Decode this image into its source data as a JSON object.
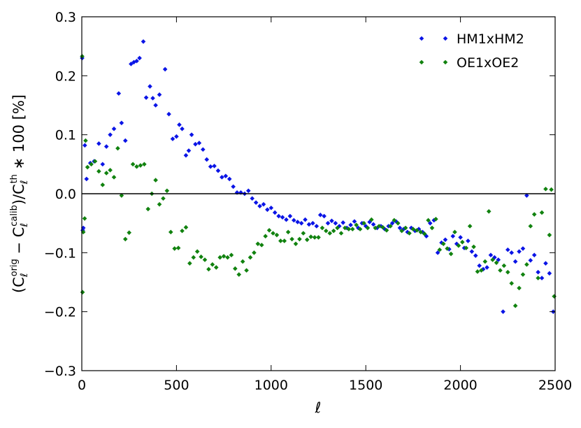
{
  "chart_data": {
    "type": "scatter",
    "xlabel": "ℓ",
    "ylabel": {
      "prefix": "(C",
      "sub1": "ℓ",
      "sup1": "orig",
      "mid": " − C",
      "sub2": "ℓ",
      "sup2": "calib",
      "mid2": ")/C",
      "sub3": "ℓ",
      "sup3": "th",
      "suffix": " ∗ 100 [%]"
    },
    "xlim": [
      0,
      2500
    ],
    "ylim": [
      -0.3,
      0.3
    ],
    "xticks": [
      0,
      500,
      1000,
      1500,
      2000,
      2500
    ],
    "xtick_labels": [
      "0",
      "500",
      "1000",
      "1500",
      "2000",
      "2500"
    ],
    "yticks": [
      -0.3,
      -0.2,
      -0.1,
      0.0,
      0.1,
      0.2,
      0.3
    ],
    "ytick_labels": [
      "−0.3",
      "−0.2",
      "−0.1",
      "0.0",
      "0.1",
      "0.2",
      "0.3"
    ],
    "hline": 0.0,
    "grid": false,
    "legend_position": "top-right",
    "marker": "diamond",
    "series": [
      {
        "name": "HM1xHM2",
        "color": "#0a14e6",
        "points": [
          [
            2,
            0.23
          ],
          [
            5,
            -0.062
          ],
          [
            8,
            -0.058
          ],
          [
            16,
            0.082
          ],
          [
            25,
            0.025
          ],
          [
            45,
            0.052
          ],
          [
            65,
            0.055
          ],
          [
            90,
            0.085
          ],
          [
            110,
            0.05
          ],
          [
            130,
            0.08
          ],
          [
            150,
            0.1
          ],
          [
            170,
            0.11
          ],
          [
            195,
            0.17
          ],
          [
            210,
            0.12
          ],
          [
            230,
            0.09
          ],
          [
            260,
            0.22
          ],
          [
            275,
            0.223
          ],
          [
            290,
            0.225
          ],
          [
            305,
            0.23
          ],
          [
            325,
            0.258
          ],
          [
            340,
            0.163
          ],
          [
            360,
            0.182
          ],
          [
            375,
            0.162
          ],
          [
            390,
            0.15
          ],
          [
            410,
            0.168
          ],
          [
            440,
            0.211
          ],
          [
            460,
            0.135
          ],
          [
            480,
            0.093
          ],
          [
            500,
            0.097
          ],
          [
            515,
            0.117
          ],
          [
            530,
            0.11
          ],
          [
            550,
            0.065
          ],
          [
            565,
            0.073
          ],
          [
            580,
            0.1
          ],
          [
            600,
            0.084
          ],
          [
            620,
            0.086
          ],
          [
            640,
            0.075
          ],
          [
            660,
            0.058
          ],
          [
            680,
            0.046
          ],
          [
            700,
            0.047
          ],
          [
            720,
            0.039
          ],
          [
            740,
            0.028
          ],
          [
            760,
            0.03
          ],
          [
            780,
            0.025
          ],
          [
            800,
            0.012
          ],
          [
            820,
            0.002
          ],
          [
            840,
            0.002
          ],
          [
            860,
            0.0
          ],
          [
            880,
            0.005
          ],
          [
            900,
            -0.008
          ],
          [
            920,
            -0.015
          ],
          [
            940,
            -0.021
          ],
          [
            960,
            -0.018
          ],
          [
            980,
            -0.027
          ],
          [
            1000,
            -0.024
          ],
          [
            1020,
            -0.032
          ],
          [
            1040,
            -0.038
          ],
          [
            1060,
            -0.04
          ],
          [
            1080,
            -0.044
          ],
          [
            1100,
            -0.038
          ],
          [
            1120,
            -0.045
          ],
          [
            1140,
            -0.048
          ],
          [
            1160,
            -0.05
          ],
          [
            1180,
            -0.044
          ],
          [
            1200,
            -0.052
          ],
          [
            1220,
            -0.05
          ],
          [
            1240,
            -0.055
          ],
          [
            1260,
            -0.036
          ],
          [
            1280,
            -0.038
          ],
          [
            1300,
            -0.05
          ],
          [
            1320,
            -0.046
          ],
          [
            1340,
            -0.05
          ],
          [
            1360,
            -0.055
          ],
          [
            1380,
            -0.049
          ],
          [
            1400,
            -0.058
          ],
          [
            1420,
            -0.053
          ],
          [
            1440,
            -0.047
          ],
          [
            1460,
            -0.058
          ],
          [
            1480,
            -0.05
          ],
          [
            1500,
            -0.055
          ],
          [
            1520,
            -0.048
          ],
          [
            1540,
            -0.052
          ],
          [
            1560,
            -0.058
          ],
          [
            1580,
            -0.055
          ],
          [
            1600,
            -0.06
          ],
          [
            1620,
            -0.055
          ],
          [
            1640,
            -0.05
          ],
          [
            1660,
            -0.047
          ],
          [
            1680,
            -0.058
          ],
          [
            1700,
            -0.06
          ],
          [
            1720,
            -0.065
          ],
          [
            1740,
            -0.058
          ],
          [
            1760,
            -0.063
          ],
          [
            1780,
            -0.06
          ],
          [
            1800,
            -0.065
          ],
          [
            1820,
            -0.072
          ],
          [
            1840,
            -0.05
          ],
          [
            1860,
            -0.045
          ],
          [
            1880,
            -0.1
          ],
          [
            1900,
            -0.083
          ],
          [
            1920,
            -0.078
          ],
          [
            1940,
            -0.094
          ],
          [
            1960,
            -0.072
          ],
          [
            1980,
            -0.085
          ],
          [
            2000,
            -0.074
          ],
          [
            2020,
            -0.092
          ],
          [
            2040,
            -0.08
          ],
          [
            2060,
            -0.098
          ],
          [
            2080,
            -0.105
          ],
          [
            2100,
            -0.122
          ],
          [
            2120,
            -0.128
          ],
          [
            2140,
            -0.125
          ],
          [
            2160,
            -0.104
          ],
          [
            2180,
            -0.108
          ],
          [
            2200,
            -0.112
          ],
          [
            2225,
            -0.2
          ],
          [
            2250,
            -0.095
          ],
          [
            2270,
            -0.1
          ],
          [
            2290,
            -0.115
          ],
          [
            2310,
            -0.098
          ],
          [
            2330,
            -0.093
          ],
          [
            2350,
            -0.003
          ],
          [
            2370,
            -0.113
          ],
          [
            2390,
            -0.104
          ],
          [
            2410,
            -0.133
          ],
          [
            2430,
            -0.143
          ],
          [
            2450,
            -0.118
          ],
          [
            2470,
            -0.135
          ],
          [
            2490,
            -0.2
          ]
        ]
      },
      {
        "name": "OE1xOE2",
        "color": "#11820f",
        "points": [
          [
            2,
            0.233
          ],
          [
            4,
            -0.167
          ],
          [
            8,
            -0.065
          ],
          [
            15,
            -0.042
          ],
          [
            20,
            0.09
          ],
          [
            30,
            0.045
          ],
          [
            50,
            0.05
          ],
          [
            70,
            0.055
          ],
          [
            90,
            0.038
          ],
          [
            110,
            0.015
          ],
          [
            130,
            0.035
          ],
          [
            150,
            0.04
          ],
          [
            170,
            0.028
          ],
          [
            190,
            0.077
          ],
          [
            210,
            -0.003
          ],
          [
            230,
            -0.077
          ],
          [
            250,
            -0.066
          ],
          [
            270,
            0.05
          ],
          [
            290,
            0.046
          ],
          [
            310,
            0.048
          ],
          [
            330,
            0.05
          ],
          [
            350,
            -0.026
          ],
          [
            370,
            0.0
          ],
          [
            390,
            0.023
          ],
          [
            410,
            -0.018
          ],
          [
            430,
            -0.008
          ],
          [
            450,
            0.005
          ],
          [
            470,
            -0.065
          ],
          [
            490,
            -0.093
          ],
          [
            510,
            -0.092
          ],
          [
            530,
            -0.063
          ],
          [
            550,
            -0.057
          ],
          [
            570,
            -0.118
          ],
          [
            590,
            -0.108
          ],
          [
            610,
            -0.098
          ],
          [
            630,
            -0.107
          ],
          [
            650,
            -0.112
          ],
          [
            670,
            -0.128
          ],
          [
            690,
            -0.12
          ],
          [
            710,
            -0.125
          ],
          [
            730,
            -0.108
          ],
          [
            750,
            -0.106
          ],
          [
            770,
            -0.108
          ],
          [
            790,
            -0.104
          ],
          [
            810,
            -0.127
          ],
          [
            830,
            -0.137
          ],
          [
            850,
            -0.115
          ],
          [
            870,
            -0.13
          ],
          [
            890,
            -0.108
          ],
          [
            910,
            -0.1
          ],
          [
            930,
            -0.085
          ],
          [
            950,
            -0.087
          ],
          [
            970,
            -0.072
          ],
          [
            990,
            -0.062
          ],
          [
            1010,
            -0.067
          ],
          [
            1030,
            -0.07
          ],
          [
            1050,
            -0.08
          ],
          [
            1070,
            -0.08
          ],
          [
            1090,
            -0.065
          ],
          [
            1110,
            -0.077
          ],
          [
            1130,
            -0.085
          ],
          [
            1150,
            -0.077
          ],
          [
            1170,
            -0.067
          ],
          [
            1190,
            -0.078
          ],
          [
            1210,
            -0.073
          ],
          [
            1230,
            -0.074
          ],
          [
            1250,
            -0.074
          ],
          [
            1270,
            -0.058
          ],
          [
            1290,
            -0.063
          ],
          [
            1310,
            -0.067
          ],
          [
            1330,
            -0.063
          ],
          [
            1350,
            -0.058
          ],
          [
            1370,
            -0.067
          ],
          [
            1390,
            -0.058
          ],
          [
            1410,
            -0.06
          ],
          [
            1430,
            -0.06
          ],
          [
            1450,
            -0.053
          ],
          [
            1470,
            -0.06
          ],
          [
            1490,
            -0.05
          ],
          [
            1510,
            -0.058
          ],
          [
            1530,
            -0.044
          ],
          [
            1550,
            -0.058
          ],
          [
            1570,
            -0.055
          ],
          [
            1590,
            -0.057
          ],
          [
            1610,
            -0.062
          ],
          [
            1630,
            -0.055
          ],
          [
            1650,
            -0.045
          ],
          [
            1670,
            -0.05
          ],
          [
            1690,
            -0.063
          ],
          [
            1710,
            -0.058
          ],
          [
            1730,
            -0.067
          ],
          [
            1750,
            -0.06
          ],
          [
            1770,
            -0.062
          ],
          [
            1790,
            -0.065
          ],
          [
            1810,
            -0.068
          ],
          [
            1830,
            -0.045
          ],
          [
            1850,
            -0.058
          ],
          [
            1870,
            -0.043
          ],
          [
            1890,
            -0.095
          ],
          [
            1910,
            -0.085
          ],
          [
            1930,
            -0.093
          ],
          [
            1950,
            -0.102
          ],
          [
            1970,
            -0.065
          ],
          [
            1990,
            -0.088
          ],
          [
            2010,
            -0.082
          ],
          [
            2030,
            -0.092
          ],
          [
            2050,
            -0.055
          ],
          [
            2070,
            -0.09
          ],
          [
            2090,
            -0.132
          ],
          [
            2110,
            -0.13
          ],
          [
            2130,
            -0.115
          ],
          [
            2150,
            -0.03
          ],
          [
            2170,
            -0.112
          ],
          [
            2190,
            -0.117
          ],
          [
            2210,
            -0.13
          ],
          [
            2230,
            -0.122
          ],
          [
            2250,
            -0.133
          ],
          [
            2270,
            -0.152
          ],
          [
            2290,
            -0.19
          ],
          [
            2310,
            -0.16
          ],
          [
            2330,
            -0.137
          ],
          [
            2350,
            -0.12
          ],
          [
            2370,
            -0.055
          ],
          [
            2390,
            -0.035
          ],
          [
            2410,
            -0.143
          ],
          [
            2430,
            -0.032
          ],
          [
            2450,
            0.008
          ],
          [
            2470,
            -0.07
          ],
          [
            2480,
            0.007
          ],
          [
            2495,
            -0.174
          ]
        ]
      }
    ]
  }
}
